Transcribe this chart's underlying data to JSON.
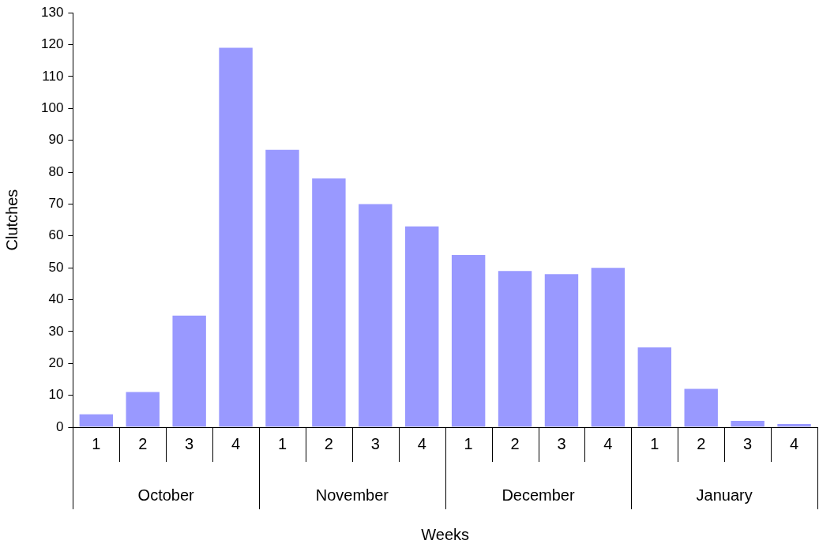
{
  "chart_data": {
    "type": "bar",
    "xlabel": "Weeks",
    "ylabel": "Clutches",
    "categories": [
      "1",
      "2",
      "3",
      "4",
      "1",
      "2",
      "3",
      "4",
      "1",
      "2",
      "3",
      "4",
      "1",
      "2",
      "3",
      "4"
    ],
    "values": [
      4,
      11,
      35,
      119,
      87,
      78,
      70,
      63,
      54,
      49,
      48,
      50,
      25,
      12,
      2,
      1
    ],
    "color": "#9999ff",
    "ylim": [
      0,
      130
    ],
    "yticks": [
      0,
      10,
      20,
      30,
      40,
      50,
      60,
      70,
      80,
      90,
      100,
      110,
      120,
      130
    ],
    "grid": false,
    "legend": false,
    "annotations": [
      "October",
      "November",
      "December",
      "January"
    ]
  }
}
